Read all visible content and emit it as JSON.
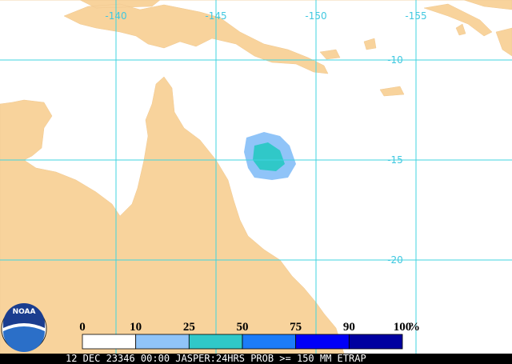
{
  "map": {
    "longitude_labels": [
      "-140",
      "-145",
      "-150",
      "-155"
    ],
    "latitude_labels": [
      "-10",
      "-15",
      "-20"
    ],
    "logo": "NOAA",
    "legend": {
      "labels": [
        "0",
        "10",
        "25",
        "50",
        "75",
        "90",
        "100"
      ],
      "unit": "%",
      "colors": [
        "#ffffff",
        "#90c4f8",
        "#30c8c8",
        "#1c7cf8",
        "#0000f8",
        "#0000a0"
      ]
    },
    "footer": "12 DEC 23346 00:00 JASPER:24HRS PROB >= 150 MM ETRAP"
  }
}
